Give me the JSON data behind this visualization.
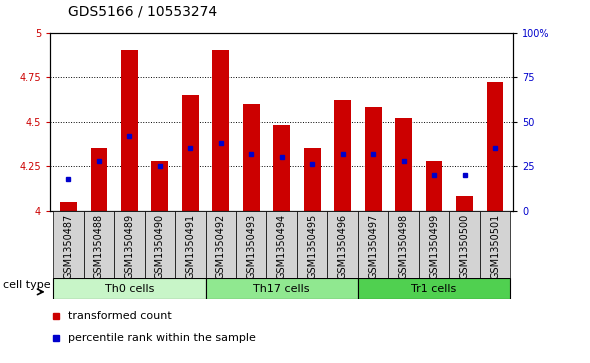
{
  "title": "GDS5166 / 10553274",
  "samples": [
    "GSM1350487",
    "GSM1350488",
    "GSM1350489",
    "GSM1350490",
    "GSM1350491",
    "GSM1350492",
    "GSM1350493",
    "GSM1350494",
    "GSM1350495",
    "GSM1350496",
    "GSM1350497",
    "GSM1350498",
    "GSM1350499",
    "GSM1350500",
    "GSM1350501"
  ],
  "transformed_count": [
    4.05,
    4.35,
    4.9,
    4.28,
    4.65,
    4.9,
    4.6,
    4.48,
    4.35,
    4.62,
    4.58,
    4.52,
    4.28,
    4.08,
    4.72
  ],
  "percentile_rank": [
    18,
    28,
    42,
    25,
    35,
    38,
    32,
    30,
    26,
    32,
    32,
    28,
    20,
    20,
    35
  ],
  "cell_groups": [
    {
      "label": "Th0 cells",
      "start": 0,
      "end": 5,
      "color": "#c8f5c8"
    },
    {
      "label": "Th17 cells",
      "start": 5,
      "end": 10,
      "color": "#90e890"
    },
    {
      "label": "Tr1 cells",
      "start": 10,
      "end": 15,
      "color": "#50d050"
    }
  ],
  "ylim_left": [
    4.0,
    5.0
  ],
  "ylim_right": [
    0,
    100
  ],
  "yticks_left": [
    4.0,
    4.25,
    4.5,
    4.75,
    5.0
  ],
  "yticks_right": [
    0,
    25,
    50,
    75,
    100
  ],
  "bar_color": "#cc0000",
  "dot_color": "#0000cc",
  "bar_width": 0.55,
  "plot_bg_color": "#ffffff",
  "tick_area_bg": "#d3d3d3",
  "title_fontsize": 10,
  "tick_fontsize": 7,
  "label_fontsize": 8,
  "axis_label_color_left": "#cc0000",
  "axis_label_color_right": "#0000cc"
}
